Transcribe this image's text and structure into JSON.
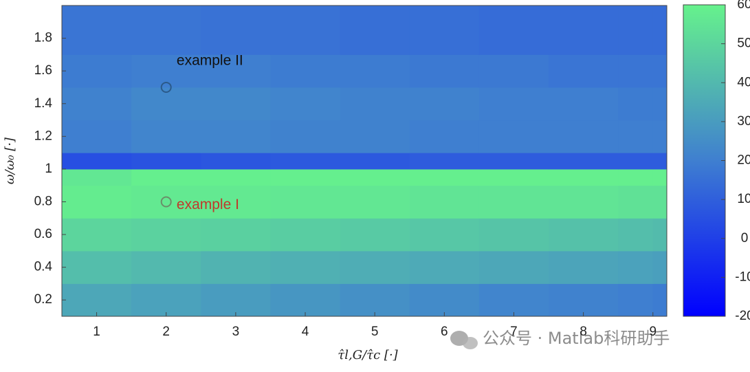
{
  "chart_data": {
    "type": "heatmap",
    "x_label": "τ̂l,G/τ̂c [·]",
    "y_label": "ω/ω₀ [·]",
    "xlim": [
      0.5,
      9.2
    ],
    "ylim": [
      0.1,
      2.0
    ],
    "xticks": [
      1,
      2,
      3,
      4,
      5,
      6,
      7,
      8,
      9
    ],
    "yticks": [
      0.2,
      0.4,
      0.6,
      0.8,
      1,
      1.2,
      1.4,
      1.6,
      1.8
    ],
    "x_edges": [
      0.5,
      1.5,
      2.5,
      3.5,
      4.5,
      5.5,
      6.5,
      7.5,
      8.5,
      9,
      9.2
    ],
    "y_edges": [
      0.1,
      0.3,
      0.5,
      0.7,
      0.9,
      1.0,
      1.1,
      1.3,
      1.5,
      1.7,
      2.0
    ],
    "z": [
      [
        34,
        32,
        30,
        28,
        26,
        24,
        22,
        21,
        20,
        19
      ],
      [
        42,
        40,
        38,
        37,
        36,
        35,
        34,
        33,
        32,
        31
      ],
      [
        50,
        49,
        48,
        47,
        46,
        45,
        44,
        43,
        42,
        41
      ],
      [
        58,
        57,
        57,
        56,
        56,
        55,
        55,
        55,
        54,
        54
      ],
      [
        56,
        59,
        59,
        59,
        59,
        59,
        59,
        59,
        59,
        59
      ],
      [
        5,
        6,
        7,
        8,
        8,
        9,
        9,
        9,
        9,
        9
      ],
      [
        20,
        22,
        22,
        21,
        21,
        20,
        20,
        20,
        20,
        20
      ],
      [
        21,
        23,
        23,
        22,
        21,
        21,
        20,
        20,
        19,
        19
      ],
      [
        19,
        20,
        20,
        19,
        19,
        18,
        18,
        17,
        17,
        17
      ],
      [
        17,
        17,
        16,
        16,
        15,
        15,
        14,
        14,
        14,
        14
      ]
    ],
    "clim": [
      -20,
      60
    ],
    "cticks": [
      -20,
      -10,
      0,
      10,
      20,
      30,
      40,
      50,
      60
    ],
    "colormap": [
      "#0000ff",
      "#3f7fd0",
      "#66f28c"
    ],
    "points": [
      {
        "x": 2,
        "y": 1.5,
        "color": "#2b5a8a",
        "label": "example II",
        "label_color": "#111111",
        "label_x": 2.15,
        "label_y": 1.66
      },
      {
        "x": 2,
        "y": 0.8,
        "color": "#6a8f6a",
        "label": "example I",
        "label_color": "#c0392b",
        "label_x": 2.15,
        "label_y": 0.78
      }
    ],
    "watermark": "公众号 · Matlab科研助手"
  }
}
